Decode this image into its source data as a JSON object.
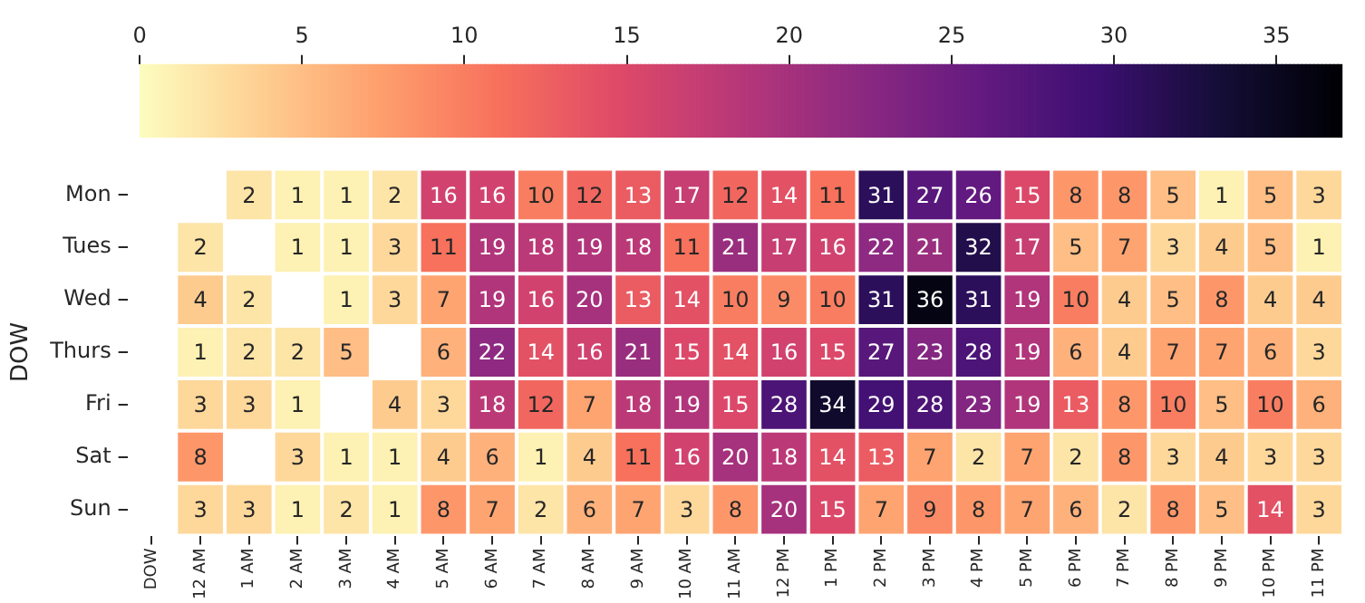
{
  "chart_data": {
    "type": "heatmap",
    "ylabel": "DOW",
    "categories": [
      "DOW",
      "12 AM",
      "1 AM",
      "2 AM",
      "3 AM",
      "4 AM",
      "5 AM",
      "6 AM",
      "7 AM",
      "8 AM",
      "9 AM",
      "10 AM",
      "11 AM",
      "12 PM",
      "1 PM",
      "2 PM",
      "3 PM",
      "4 PM",
      "5 PM",
      "6 PM",
      "7 PM",
      "8 PM",
      "9 PM",
      "10 PM",
      "11 PM"
    ],
    "y_categories": [
      "Mon",
      "Tues",
      "Wed",
      "Thurs",
      "Fri",
      "Sat",
      "Sun"
    ],
    "cells": [
      [
        null,
        null,
        2,
        1,
        1,
        2,
        16,
        16,
        10,
        12,
        13,
        17,
        12,
        14,
        11,
        31,
        27,
        26,
        15,
        8,
        8,
        5,
        1,
        5,
        3
      ],
      [
        null,
        2,
        null,
        1,
        1,
        3,
        11,
        19,
        18,
        19,
        18,
        11,
        21,
        17,
        16,
        22,
        21,
        32,
        17,
        5,
        7,
        3,
        4,
        5,
        1
      ],
      [
        null,
        4,
        2,
        null,
        1,
        3,
        7,
        19,
        16,
        20,
        13,
        14,
        10,
        9,
        10,
        31,
        36,
        31,
        19,
        10,
        4,
        5,
        8,
        4,
        4
      ],
      [
        null,
        1,
        2,
        2,
        5,
        null,
        6,
        22,
        14,
        16,
        21,
        15,
        14,
        16,
        15,
        27,
        23,
        28,
        19,
        6,
        4,
        7,
        7,
        6,
        3
      ],
      [
        null,
        3,
        3,
        1,
        null,
        4,
        3,
        18,
        12,
        7,
        18,
        19,
        15,
        28,
        34,
        29,
        28,
        23,
        19,
        13,
        8,
        10,
        5,
        10,
        6
      ],
      [
        null,
        8,
        null,
        3,
        1,
        1,
        4,
        6,
        1,
        4,
        11,
        16,
        20,
        18,
        14,
        13,
        7,
        2,
        7,
        2,
        8,
        3,
        4,
        3,
        3
      ],
      [
        null,
        3,
        3,
        1,
        2,
        1,
        8,
        7,
        2,
        6,
        7,
        3,
        8,
        20,
        15,
        7,
        9,
        8,
        7,
        6,
        2,
        8,
        5,
        14,
        3
      ]
    ],
    "data_labels": true,
    "clim": [
      0,
      37
    ],
    "cticks": [
      0,
      5,
      10,
      15,
      20,
      25,
      30,
      35
    ]
  }
}
